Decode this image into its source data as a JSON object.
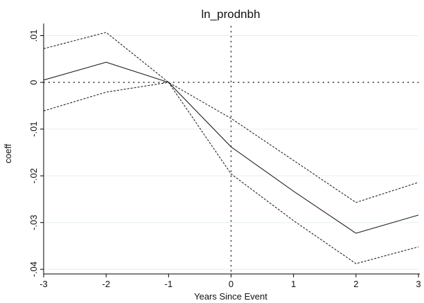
{
  "chart_data": {
    "type": "line",
    "title": "ln_prodnbh",
    "xlabel": "Years Since Event",
    "ylabel": "coeff",
    "x": [
      -3,
      -2,
      -1,
      0,
      1,
      2,
      3
    ],
    "xticks": [
      "-3",
      "-2",
      "-1",
      "0",
      "1",
      "2",
      "3"
    ],
    "yticks": [
      {
        "value": 0.01,
        "label": ".01"
      },
      {
        "value": 0,
        "label": "0"
      },
      {
        "value": -0.01,
        "label": "-.01"
      },
      {
        "value": -0.02,
        "label": "-.02"
      },
      {
        "value": -0.03,
        "label": "-.03"
      },
      {
        "value": -0.04,
        "label": "-.04"
      }
    ],
    "xlim": [
      -3,
      3
    ],
    "ylim": [
      -0.041,
      0.012
    ],
    "grid": "horizontal",
    "reference_lines": {
      "x": 0,
      "y": 0
    },
    "series": [
      {
        "role": "coefficient",
        "style": "solid",
        "values": [
          0.0005,
          0.0043,
          0.0,
          -0.0138,
          -0.0233,
          -0.0323,
          -0.0284
        ]
      },
      {
        "role": "upper",
        "style": "dashed",
        "values": [
          0.0072,
          0.0107,
          0.0,
          -0.0077,
          -0.0167,
          -0.0257,
          -0.0214
        ]
      },
      {
        "role": "lower",
        "style": "dashed",
        "values": [
          -0.0061,
          -0.0021,
          0.0,
          -0.0196,
          -0.0296,
          -0.0388,
          -0.0352
        ]
      }
    ],
    "colors": {
      "line": "#222222",
      "grid": "#e6eef2",
      "axis": "#000000"
    }
  }
}
